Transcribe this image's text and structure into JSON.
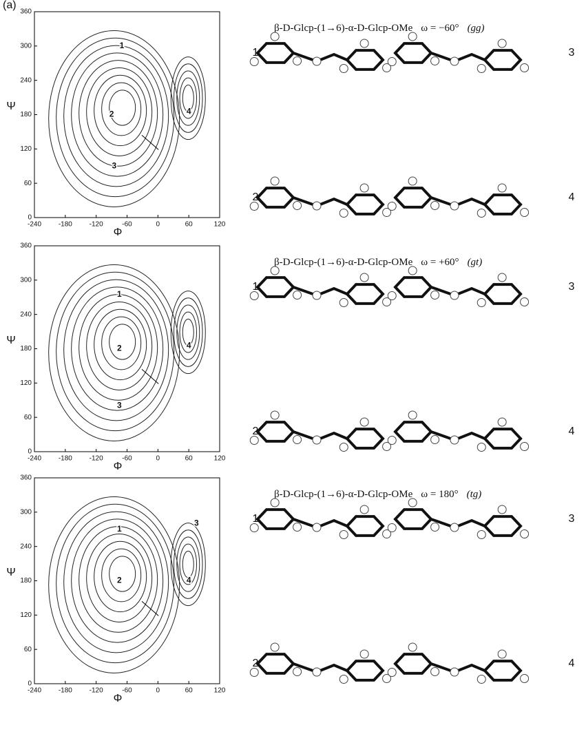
{
  "figure_label": "(a)",
  "panels": [
    {
      "title": "β-D-Glcp-(1→6)-α-D-Glcp-OMe",
      "omega": "ω = −60°",
      "conformer": "(gg)",
      "plot": {
        "xlabel": "Φ",
        "ylabel": "Ψ",
        "xlim": [
          -240,
          120
        ],
        "ylim": [
          0,
          360
        ],
        "xticks": [
          -240,
          -180,
          -120,
          -60,
          0,
          60,
          120
        ],
        "yticks": [
          0,
          60,
          120,
          180,
          240,
          300,
          360
        ],
        "minima": [
          {
            "label": "1",
            "x": -70,
            "y": 300
          },
          {
            "label": "2",
            "x": -90,
            "y": 180
          },
          {
            "label": "3",
            "x": -85,
            "y": 90
          },
          {
            "label": "4",
            "x": 60,
            "y": 185
          }
        ]
      },
      "structures": [
        "1",
        "3",
        "2",
        "4"
      ]
    },
    {
      "title": "β-D-Glcp-(1→6)-α-D-Glcp-OMe",
      "omega": "ω = +60°",
      "conformer": "(gt)",
      "plot": {
        "xlabel": "Φ",
        "ylabel": "Ψ",
        "xlim": [
          -240,
          120
        ],
        "ylim": [
          0,
          360
        ],
        "xticks": [
          -240,
          -180,
          -120,
          -60,
          0,
          60,
          120
        ],
        "yticks": [
          0,
          60,
          120,
          180,
          240,
          300,
          360
        ],
        "minima": [
          {
            "label": "1",
            "x": -75,
            "y": 275
          },
          {
            "label": "2",
            "x": -75,
            "y": 180
          },
          {
            "label": "3",
            "x": -75,
            "y": 80
          },
          {
            "label": "4",
            "x": 60,
            "y": 185
          }
        ]
      },
      "structures": [
        "1",
        "3",
        "2",
        "4"
      ]
    },
    {
      "title": "β-D-Glcp-(1→6)-α-D-Glcp-OMe",
      "omega": "ω = 180°",
      "conformer": "(tg)",
      "plot": {
        "xlabel": "Φ",
        "ylabel": "Ψ",
        "xlim": [
          -240,
          120
        ],
        "ylim": [
          0,
          360
        ],
        "xticks": [
          -240,
          -180,
          -120,
          -60,
          0,
          60,
          120
        ],
        "yticks": [
          0,
          60,
          120,
          180,
          240,
          300,
          360
        ],
        "minima": [
          {
            "label": "1",
            "x": -75,
            "y": 270
          },
          {
            "label": "2",
            "x": -75,
            "y": 180
          },
          {
            "label": "3",
            "x": 75,
            "y": 280
          },
          {
            "label": "4",
            "x": 60,
            "y": 180
          }
        ]
      },
      "structures": [
        "1",
        "3",
        "2",
        "4"
      ]
    }
  ]
}
